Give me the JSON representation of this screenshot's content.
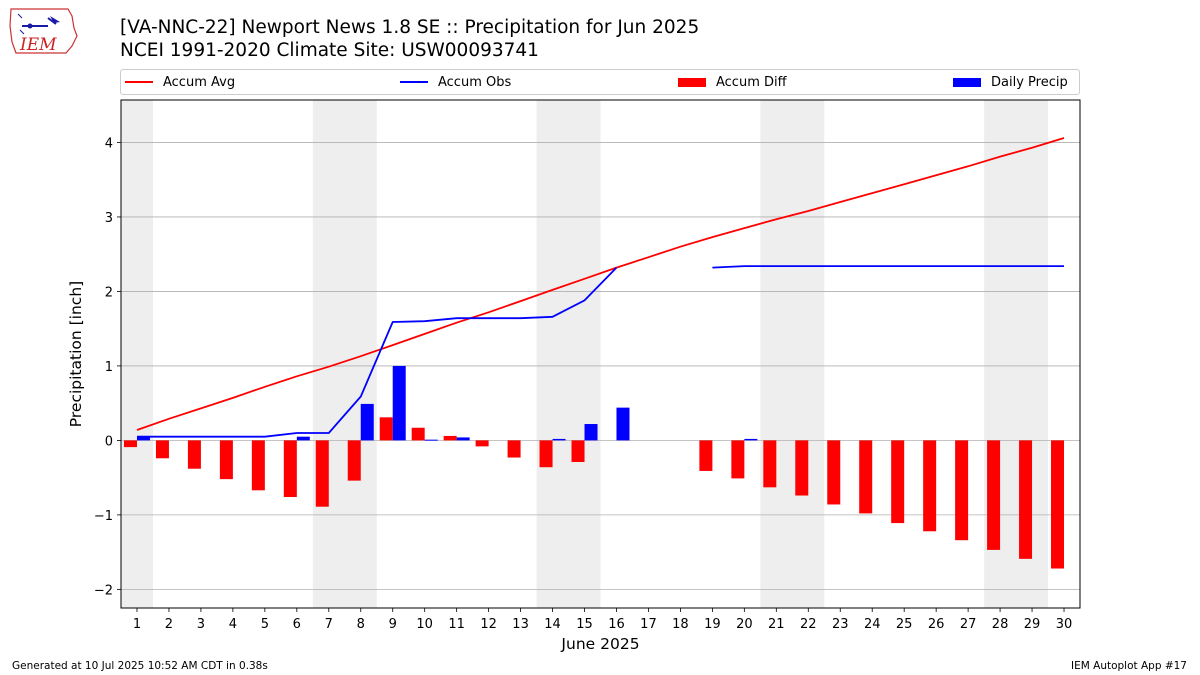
{
  "title_line1": "[VA-NNC-22] Newport News 1.8 SE :: Precipitation for Jun 2025",
  "title_line2": "NCEI 1991-2020 Climate Site: USW00093741",
  "logo_text": "IEM",
  "footer_left": "Generated at 10 Jul 2025 10:52 AM CDT in 0.38s",
  "footer_right": "IEM Autoplot App #17",
  "colors": {
    "accum_avg": "#ff0000",
    "accum_obs": "#0000ff",
    "accum_diff": "#ff0000",
    "daily_precip": "#0000ff",
    "weekend_shade": "#eeeeee",
    "grid": "#b0b0b0"
  },
  "chart_data": {
    "type": "bar",
    "xlabel": "June 2025",
    "ylabel": "Precipitation [inch]",
    "xlim": [
      0.5,
      30.5
    ],
    "ylim": [
      -2.25,
      4.57
    ],
    "yticks": [
      -2,
      -1,
      0,
      1,
      2,
      3,
      4
    ],
    "grid": "horizontal",
    "legend_position": "top",
    "days": [
      1,
      2,
      3,
      4,
      5,
      6,
      7,
      8,
      9,
      10,
      11,
      12,
      13,
      14,
      15,
      16,
      17,
      18,
      19,
      20,
      21,
      22,
      23,
      24,
      25,
      26,
      27,
      28,
      29,
      30
    ],
    "shaded_days": [
      [
        0.5,
        1.5
      ],
      [
        6.5,
        8.5
      ],
      [
        13.5,
        15.5
      ],
      [
        20.5,
        22.5
      ],
      [
        27.5,
        29.5
      ]
    ],
    "series": [
      {
        "name": "Accum Avg",
        "kind": "line",
        "values": [
          0.14,
          0.29,
          0.43,
          0.57,
          0.72,
          0.86,
          0.99,
          1.13,
          1.28,
          1.43,
          1.58,
          1.72,
          1.87,
          2.02,
          2.17,
          2.32,
          2.46,
          2.6,
          2.73,
          2.85,
          2.97,
          3.08,
          3.2,
          3.32,
          3.44,
          3.56,
          3.68,
          3.81,
          3.93,
          4.06
        ]
      },
      {
        "name": "Accum Obs",
        "kind": "line",
        "values": [
          0.05,
          0.05,
          0.05,
          0.05,
          0.05,
          0.1,
          0.1,
          0.59,
          1.59,
          1.6,
          1.64,
          1.64,
          1.64,
          1.66,
          1.88,
          2.32,
          null,
          null,
          2.32,
          2.34,
          2.34,
          2.34,
          2.34,
          2.34,
          2.34,
          2.34,
          2.34,
          2.34,
          2.34,
          2.34
        ]
      },
      {
        "name": "Accum Diff",
        "kind": "bar",
        "values": [
          -0.09,
          -0.24,
          -0.38,
          -0.52,
          -0.67,
          -0.76,
          -0.89,
          -0.54,
          0.31,
          0.17,
          0.06,
          -0.08,
          -0.23,
          -0.36,
          -0.29,
          0.0,
          null,
          null,
          -0.41,
          -0.51,
          -0.63,
          -0.74,
          -0.86,
          -0.98,
          -1.11,
          -1.22,
          -1.34,
          -1.47,
          -1.59,
          -1.72
        ]
      },
      {
        "name": "Daily Precip",
        "kind": "bar",
        "values": [
          0.05,
          0,
          0,
          0,
          0,
          0.05,
          0,
          0.49,
          1.0,
          0.01,
          0.04,
          0,
          0,
          0.02,
          0.22,
          0.44,
          null,
          null,
          0,
          0.02,
          0,
          0,
          0,
          0,
          0,
          0,
          0,
          0,
          0,
          0
        ]
      }
    ]
  }
}
